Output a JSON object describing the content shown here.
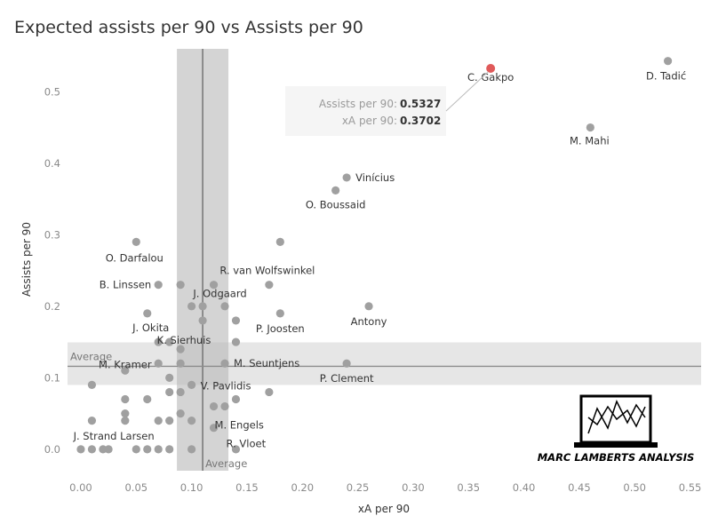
{
  "chart_data": {
    "type": "scatter",
    "title": "Expected assists per 90 vs Assists per 90",
    "xlabel": "xA per 90",
    "ylabel": "Assists per 90",
    "xlim": [
      -0.012,
      0.56
    ],
    "ylim": [
      -0.03,
      0.56
    ],
    "xticks": [
      "0.00",
      "0.05",
      "0.10",
      "0.15",
      "0.20",
      "0.25",
      "0.30",
      "0.35",
      "0.40",
      "0.45",
      "0.50",
      "0.55"
    ],
    "yticks": [
      "0.0",
      "0.1",
      "0.2",
      "0.3",
      "0.4",
      "0.5"
    ],
    "point_color": "#a0a0a0",
    "highlight_color": "#e05a5a",
    "average": {
      "x": 0.11,
      "y": 0.116,
      "label": "Average"
    },
    "points": [
      {
        "x": 0.37,
        "y": 0.5327,
        "label": "C. Gakpo",
        "highlight": true
      },
      {
        "x": 0.53,
        "y": 0.543,
        "label": "D. Tadić"
      },
      {
        "x": 0.46,
        "y": 0.45,
        "label": "M. Mahi"
      },
      {
        "x": 0.24,
        "y": 0.38,
        "label": "Vinícius"
      },
      {
        "x": 0.23,
        "y": 0.362,
        "label": "O. Boussaid"
      },
      {
        "x": 0.05,
        "y": 0.29,
        "label": "O. Darfalou"
      },
      {
        "x": 0.18,
        "y": 0.29,
        "label": ""
      },
      {
        "x": 0.17,
        "y": 0.23,
        "label": "R. van Wolfswinkel"
      },
      {
        "x": 0.07,
        "y": 0.23,
        "label": "B. Linssen"
      },
      {
        "x": 0.09,
        "y": 0.23,
        "label": ""
      },
      {
        "x": 0.12,
        "y": 0.23,
        "label": "J. Odgaard"
      },
      {
        "x": 0.26,
        "y": 0.2,
        "label": "Antony"
      },
      {
        "x": 0.18,
        "y": 0.19,
        "label": "P. Joosten"
      },
      {
        "x": 0.06,
        "y": 0.19,
        "label": "J. Okita"
      },
      {
        "x": 0.1,
        "y": 0.2,
        "label": ""
      },
      {
        "x": 0.11,
        "y": 0.2,
        "label": ""
      },
      {
        "x": 0.13,
        "y": 0.2,
        "label": ""
      },
      {
        "x": 0.11,
        "y": 0.18,
        "label": ""
      },
      {
        "x": 0.14,
        "y": 0.18,
        "label": ""
      },
      {
        "x": 0.08,
        "y": 0.15,
        "label": "K. Sierhuis"
      },
      {
        "x": 0.07,
        "y": 0.15,
        "label": ""
      },
      {
        "x": 0.14,
        "y": 0.15,
        "label": ""
      },
      {
        "x": 0.09,
        "y": 0.14,
        "label": ""
      },
      {
        "x": 0.13,
        "y": 0.12,
        "label": "M. Seuntjens"
      },
      {
        "x": 0.24,
        "y": 0.12,
        "label": "P. Clement"
      },
      {
        "x": 0.04,
        "y": 0.11,
        "label": "M. Kramer"
      },
      {
        "x": 0.07,
        "y": 0.12,
        "label": ""
      },
      {
        "x": 0.09,
        "y": 0.12,
        "label": ""
      },
      {
        "x": 0.08,
        "y": 0.1,
        "label": ""
      },
      {
        "x": 0.01,
        "y": 0.09,
        "label": ""
      },
      {
        "x": 0.1,
        "y": 0.09,
        "label": "V. Pavlidis"
      },
      {
        "x": 0.17,
        "y": 0.08,
        "label": ""
      },
      {
        "x": 0.08,
        "y": 0.08,
        "label": ""
      },
      {
        "x": 0.09,
        "y": 0.08,
        "label": ""
      },
      {
        "x": 0.04,
        "y": 0.07,
        "label": ""
      },
      {
        "x": 0.06,
        "y": 0.07,
        "label": ""
      },
      {
        "x": 0.14,
        "y": 0.07,
        "label": ""
      },
      {
        "x": 0.12,
        "y": 0.06,
        "label": "M. Engels"
      },
      {
        "x": 0.13,
        "y": 0.06,
        "label": ""
      },
      {
        "x": 0.04,
        "y": 0.05,
        "label": ""
      },
      {
        "x": 0.09,
        "y": 0.05,
        "label": ""
      },
      {
        "x": 0.01,
        "y": 0.04,
        "label": ""
      },
      {
        "x": 0.04,
        "y": 0.04,
        "label": ""
      },
      {
        "x": 0.07,
        "y": 0.04,
        "label": ""
      },
      {
        "x": 0.08,
        "y": 0.04,
        "label": ""
      },
      {
        "x": 0.1,
        "y": 0.04,
        "label": ""
      },
      {
        "x": 0.12,
        "y": 0.03,
        "label": "R. Vloet"
      },
      {
        "x": 0.025,
        "y": 0.0,
        "label": "J. Strand Larsen"
      },
      {
        "x": 0.0,
        "y": 0.0,
        "label": ""
      },
      {
        "x": 0.01,
        "y": 0.0,
        "label": ""
      },
      {
        "x": 0.02,
        "y": 0.0,
        "label": ""
      },
      {
        "x": 0.05,
        "y": 0.0,
        "label": ""
      },
      {
        "x": 0.06,
        "y": 0.0,
        "label": ""
      },
      {
        "x": 0.07,
        "y": 0.0,
        "label": ""
      },
      {
        "x": 0.08,
        "y": 0.0,
        "label": ""
      },
      {
        "x": 0.1,
        "y": 0.0,
        "label": ""
      },
      {
        "x": 0.14,
        "y": 0.0,
        "label": ""
      }
    ],
    "grid": false,
    "legend": "none"
  },
  "tooltip": {
    "key1": "Assists per 90:",
    "val1": "0.5327",
    "key2": "xA per 90:",
    "val2": "0.3702"
  },
  "logo": {
    "text": "MARC LAMBERTS ANALYSIS",
    "icon": "laptop-chart-icon"
  }
}
